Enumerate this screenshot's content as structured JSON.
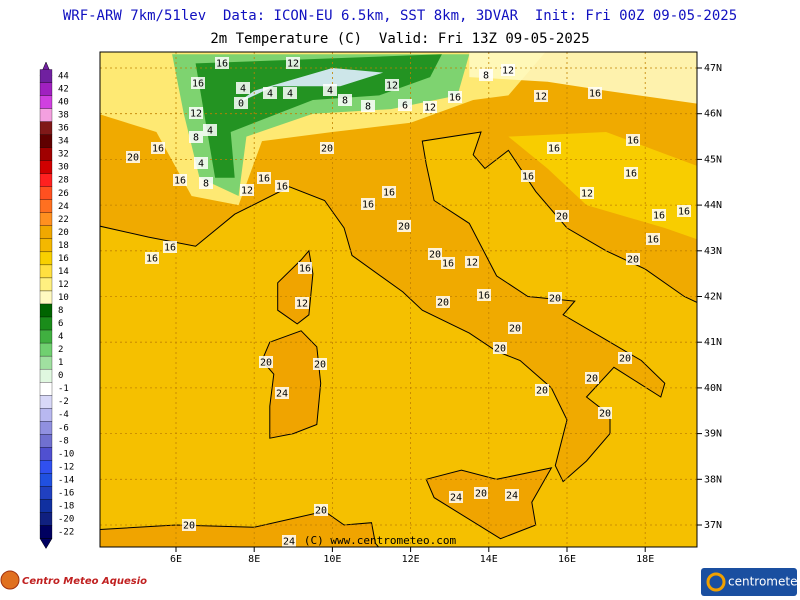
{
  "header": {
    "line1": "WRF-ARW 7km/51lev  Data: ICON-EU 6.5km, SST 8km, 3DVAR  Init: Fri 00Z 09-05-2025",
    "line2": "2m Temperature (C)  Valid: Fri 13Z 09-05-2025"
  },
  "colorbar": {
    "labels": [
      "44",
      "42",
      "40",
      "38",
      "36",
      "34",
      "32",
      "30",
      "28",
      "26",
      "24",
      "22",
      "20",
      "18",
      "16",
      "14",
      "12",
      "10",
      "8",
      "6",
      "4",
      "2",
      "1",
      "0",
      "-1",
      "-2",
      "-4",
      "-6",
      "-8",
      "-10",
      "-12",
      "-14",
      "-16",
      "-18",
      "-20",
      "-22"
    ]
  },
  "map": {
    "lat_labels": [
      "47N",
      "46N",
      "45N",
      "44N",
      "43N",
      "42N",
      "41N",
      "40N",
      "39N",
      "38N",
      "37N"
    ],
    "lon_labels": [
      "6E",
      "8E",
      "10E",
      "12E",
      "14E",
      "16E",
      "18E"
    ],
    "contour_labels": [
      "16",
      "12",
      "16",
      "4",
      "4",
      "4",
      "4",
      "8",
      "8",
      "12",
      "6",
      "12",
      "16",
      "8",
      "12",
      "12",
      "16",
      "12",
      "0",
      "4",
      "8",
      "4",
      "8",
      "12",
      "16",
      "16",
      "16",
      "20",
      "16",
      "16",
      "16",
      "16",
      "16",
      "12",
      "20",
      "16",
      "16",
      "16",
      "20",
      "20",
      "16",
      "16",
      "20",
      "16",
      "16",
      "16",
      "12",
      "20",
      "16",
      "12",
      "16",
      "20",
      "20",
      "20",
      "20",
      "20",
      "20",
      "20",
      "20",
      "20",
      "20",
      "24",
      "24",
      "20",
      "24",
      "20",
      "20",
      "24"
    ],
    "copyright": "(C) www.centrometeo.com"
  },
  "footer": {
    "left_logo": "Centro Meteo Aquesio",
    "right_logo": "centrometeo"
  }
}
